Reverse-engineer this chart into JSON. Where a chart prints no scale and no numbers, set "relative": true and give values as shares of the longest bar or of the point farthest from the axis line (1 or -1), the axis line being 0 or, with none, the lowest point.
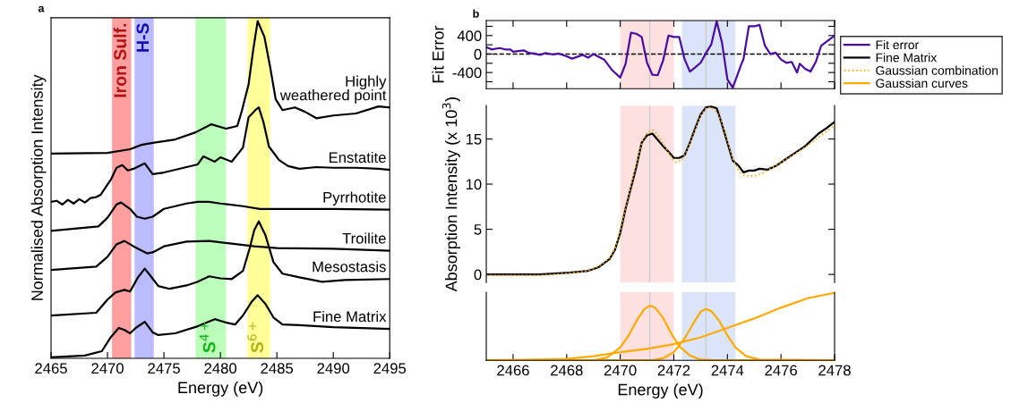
{
  "chart_data": [
    {
      "type": "line",
      "title": "a",
      "xlabel": "Energy (eV)",
      "ylabel": "Normalised Absorption Intensity",
      "relative": true,
      "legend": false,
      "marker": "none",
      "xlim": [
        2465,
        2495
      ],
      "xticks": [
        2465,
        2470,
        2475,
        2480,
        2485,
        2490,
        2495
      ],
      "bands": [
        {
          "axis": "x",
          "from": 2470.4,
          "to": 2472.1,
          "label": "Iron Sulf.",
          "color": "#ff9f9f"
        },
        {
          "axis": "x",
          "from": 2472.4,
          "to": 2474.1,
          "label": "H-S",
          "color": "#bbbbff"
        },
        {
          "axis": "x",
          "from": 2477.8,
          "to": 2480.5,
          "label": "S$^{4+}$",
          "color": "#bbffbb"
        },
        {
          "axis": "x",
          "from": 2482.4,
          "to": 2484.4,
          "label": "S$^{6+}$",
          "color": "#ffff99"
        }
      ],
      "series": [
        {
          "name": "Highly\nweathered point",
          "color": "#000000",
          "x": [
            2465,
            2470,
            2472,
            2473,
            2474,
            2476,
            2477.8,
            2479.2,
            2480.5,
            2481.5,
            2481.9,
            2482.5,
            2482.9,
            2483.3,
            2483.9,
            2484.4,
            2484.9,
            2485.5,
            2486.6,
            2487.5,
            2488.5,
            2490,
            2492,
            2494,
            2495
          ],
          "values": [
            0.607,
            0.609,
            0.62,
            0.633,
            0.639,
            0.649,
            0.67,
            0.694,
            0.681,
            0.689,
            0.734,
            0.813,
            0.913,
            1.0,
            0.953,
            0.865,
            0.768,
            0.736,
            0.744,
            0.731,
            0.712,
            0.72,
            0.726,
            0.747,
            0.744
          ]
        },
        {
          "name": "Enstatite",
          "color": "#000000",
          "x": [
            2465,
            2465.5,
            2466,
            2466.5,
            2467,
            2467.5,
            2468,
            2468.5,
            2469,
            2469.4,
            2470.3,
            2470.8,
            2471.3,
            2471.8,
            2472.3,
            2473.3,
            2474,
            2475,
            2476,
            2477,
            2478,
            2478.5,
            2479.5,
            2480,
            2481,
            2482,
            2482.5,
            2483.1,
            2483.4,
            2483.8,
            2484.3,
            2485.2,
            2486,
            2487,
            2488.5,
            2490,
            2492,
            2494,
            2495
          ],
          "values": [
            0.464,
            0.467,
            0.456,
            0.47,
            0.459,
            0.472,
            0.462,
            0.475,
            0.478,
            0.485,
            0.53,
            0.565,
            0.573,
            0.557,
            0.562,
            0.578,
            0.546,
            0.551,
            0.559,
            0.567,
            0.575,
            0.599,
            0.583,
            0.596,
            0.583,
            0.625,
            0.715,
            0.736,
            0.744,
            0.702,
            0.628,
            0.588,
            0.57,
            0.562,
            0.567,
            0.565,
            0.565,
            0.562,
            0.559
          ]
        },
        {
          "name": "Pyrrhotite",
          "color": "#000000",
          "x": [
            2465,
            2469.2,
            2470,
            2470.8,
            2471.2,
            2472,
            2472.6,
            2473.3,
            2474,
            2475,
            2477,
            2478,
            2479,
            2480,
            2482,
            2483.5,
            2485,
            2490,
            2495
          ],
          "values": [
            0.378,
            0.391,
            0.417,
            0.456,
            0.462,
            0.443,
            0.42,
            0.414,
            0.42,
            0.443,
            0.459,
            0.464,
            0.464,
            0.459,
            0.451,
            0.443,
            0.443,
            0.443,
            0.441
          ]
        },
        {
          "name": "Troilite",
          "color": "#000000",
          "x": [
            2465,
            2469,
            2470,
            2470.8,
            2471.5,
            2472.3,
            2473.5,
            2474,
            2475,
            2477,
            2479,
            2481,
            2483,
            2485,
            2490,
            2495
          ],
          "values": [
            0.262,
            0.272,
            0.301,
            0.338,
            0.348,
            0.332,
            0.311,
            0.314,
            0.332,
            0.346,
            0.348,
            0.34,
            0.332,
            0.327,
            0.325,
            0.319
          ]
        },
        {
          "name": "Mesostasis",
          "color": "#000000",
          "x": [
            2465,
            2469,
            2470,
            2470.7,
            2471.5,
            2472,
            2472.7,
            2473.3,
            2473.8,
            2474.5,
            2475.5,
            2477,
            2478,
            2479,
            2480,
            2481,
            2482,
            2482.6,
            2483,
            2483.4,
            2484,
            2484.7,
            2485.5,
            2487,
            2489,
            2491,
            2495
          ],
          "values": [
            0.127,
            0.135,
            0.174,
            0.195,
            0.203,
            0.198,
            0.24,
            0.266,
            0.245,
            0.214,
            0.206,
            0.216,
            0.227,
            0.243,
            0.237,
            0.235,
            0.259,
            0.327,
            0.38,
            0.406,
            0.364,
            0.285,
            0.251,
            0.24,
            0.227,
            0.232,
            0.235
          ]
        },
        {
          "name": "Fine Matrix",
          "color": "#000000",
          "x": [
            2465,
            2468,
            2469.5,
            2470.3,
            2471,
            2471.5,
            2472,
            2472.5,
            2473.3,
            2474,
            2474.5,
            2476,
            2478,
            2479.5,
            2480.5,
            2481.3,
            2482,
            2482.8,
            2483.3,
            2484,
            2484.7,
            2485.5,
            2487,
            2490,
            2495
          ],
          "values": [
            0.003,
            0.008,
            0.021,
            0.063,
            0.09,
            0.084,
            0.074,
            0.09,
            0.108,
            0.077,
            0.069,
            0.074,
            0.095,
            0.116,
            0.106,
            0.1,
            0.127,
            0.169,
            0.187,
            0.161,
            0.121,
            0.1,
            0.098,
            0.092,
            0.087
          ]
        }
      ]
    },
    {
      "type": "line",
      "title": "b",
      "ylabel": "Fit Error",
      "marker": "none",
      "tick_labels": "y",
      "xlim": [
        2465,
        2478
      ],
      "xticks": [
        2466,
        2468,
        2470,
        2472,
        2474,
        2476,
        2478
      ],
      "ylim": [
        -750,
        725
      ],
      "yticks": [
        {
          "value": -600,
          "label": null
        },
        -400,
        {
          "value": -200,
          "label": null
        },
        0,
        {
          "value": 200,
          "label": null
        },
        400,
        {
          "value": 600,
          "label": null
        }
      ],
      "bands": [
        {
          "axis": "x",
          "from": 2470.0,
          "to": 2472.0,
          "color": "#fde0e0"
        },
        {
          "axis": "x",
          "from": 2472.3,
          "to": 2474.3,
          "color": "#dce4fa"
        }
      ],
      "ref_lines": [
        {
          "axis": "x",
          "value": 2471.1,
          "color": "#cccccc"
        },
        {
          "axis": "x",
          "value": 2473.2,
          "color": "#cccccc"
        },
        {
          "axis": "y",
          "value": 0,
          "color": "#000000",
          "line_style": "dashed"
        }
      ],
      "series": [
        {
          "name": "Fit error",
          "color": "#4b0ca0",
          "x": [
            2465.0,
            2465.2,
            2465.5,
            2465.7,
            2465.9,
            2466.0,
            2466.4,
            2466.6,
            2466.8,
            2467.0,
            2467.2,
            2467.5,
            2467.7,
            2468.0,
            2468.2,
            2468.6,
            2468.8,
            2469.0,
            2469.4,
            2469.7,
            2470.0,
            2470.2,
            2470.4,
            2470.6,
            2470.8,
            2471.0,
            2471.2,
            2471.4,
            2471.6,
            2471.8,
            2472.0,
            2472.2,
            2472.4,
            2472.6,
            2472.8,
            2473.0,
            2473.2,
            2473.4,
            2473.6,
            2473.8,
            2474.0,
            2474.2,
            2474.5,
            2474.6,
            2474.8,
            2475.0,
            2475.2,
            2475.4,
            2475.6,
            2475.8,
            2476.0,
            2476.2,
            2476.4,
            2476.6,
            2476.7,
            2476.9,
            2477.1,
            2477.3,
            2477.5,
            2478.0
          ],
          "values": [
            150,
            100,
            130,
            100,
            100,
            50,
            80,
            20,
            10,
            -20,
            20,
            -10,
            10,
            -50,
            -100,
            -20,
            -80,
            0,
            -120,
            -350,
            -510,
            -210,
            460,
            440,
            370,
            -190,
            -450,
            -460,
            -140,
            400,
            370,
            370,
            -110,
            -380,
            -290,
            -190,
            20,
            210,
            710,
            240,
            -550,
            -730,
            -250,
            -110,
            600,
            600,
            630,
            180,
            0,
            30,
            -120,
            -190,
            -170,
            -400,
            -210,
            -320,
            -380,
            -170,
            180,
            400
          ]
        }
      ]
    },
    {
      "type": "line",
      "ylabel": "Absorption Intensity (x 10$^{3}$)",
      "legend": "right",
      "marker": "none",
      "tick_labels": "y",
      "xlim": [
        2465,
        2478
      ],
      "xticks": [
        2466,
        2468,
        2470,
        2472,
        2474,
        2476,
        2478
      ],
      "ylim": [
        -0.9,
        18.7
      ],
      "yticks": [
        0,
        5,
        10,
        15
      ],
      "bands": [
        {
          "axis": "x",
          "from": 2470.0,
          "to": 2472.0,
          "color": "#fde0e0"
        },
        {
          "axis": "x",
          "from": 2472.3,
          "to": 2474.3,
          "color": "#dce4fa"
        }
      ],
      "ref_lines": [
        {
          "axis": "x",
          "value": 2471.1,
          "color": "#cccccc"
        },
        {
          "axis": "x",
          "value": 2473.2,
          "color": "#cccccc"
        }
      ],
      "series": [
        {
          "name": "Fine Matrix",
          "color": "#000000",
          "line_style": "solid",
          "x": [
            2465.0,
            2467.0,
            2468.1,
            2468.8,
            2469.2,
            2469.6,
            2469.8,
            2470.0,
            2470.2,
            2470.4,
            2470.6,
            2470.8,
            2471.0,
            2471.2,
            2471.4,
            2471.6,
            2471.8,
            2472.0,
            2472.2,
            2472.4,
            2472.6,
            2472.8,
            2473.0,
            2473.2,
            2473.4,
            2473.6,
            2473.8,
            2474.0,
            2474.2,
            2474.4,
            2474.6,
            2474.8,
            2475.0,
            2475.2,
            2475.5,
            2475.8,
            2476.1,
            2476.5,
            2476.9,
            2477.4,
            2477.7,
            2478.0
          ],
          "values": [
            0,
            0,
            0.2,
            0.4,
            0.8,
            1.7,
            2.7,
            4.6,
            7.3,
            9.6,
            11.9,
            14.6,
            15.4,
            15.6,
            14.9,
            14.2,
            13.6,
            12.9,
            12.9,
            13.2,
            14.6,
            16.2,
            17.7,
            18.5,
            18.6,
            18.4,
            16.6,
            14.6,
            12.6,
            12.1,
            11.3,
            11.5,
            11.5,
            11.7,
            11.6,
            12.0,
            12.6,
            13.4,
            14.2,
            15.6,
            16.2,
            16.9
          ]
        },
        {
          "name": "Gaussian combination",
          "color": "#ffaa00",
          "line_style": "dotted",
          "x": [
            2465,
            2467,
            2468,
            2468.8,
            2469.2,
            2469.6,
            2469.8,
            2470.0,
            2470.2,
            2470.4,
            2470.6,
            2470.8,
            2471.0,
            2471.2,
            2471.4,
            2471.6,
            2471.8,
            2472.0,
            2472.1,
            2472.3,
            2472.5,
            2472.8,
            2473.0,
            2473.2,
            2473.4,
            2473.6,
            2473.8,
            2474.0,
            2474.2,
            2474.4,
            2474.6,
            2474.8,
            2475.0,
            2475.3,
            2475.6,
            2476.0,
            2476.5,
            2477.0,
            2477.5,
            2478.0
          ],
          "values": [
            -0.1,
            -0.1,
            0.1,
            0.4,
            0.9,
            1.8,
            2.8,
            4.8,
            7.4,
            9.8,
            12.2,
            14.6,
            15.7,
            16.0,
            15.5,
            14.5,
            13.5,
            12.6,
            12.4,
            12.7,
            13.8,
            16.0,
            17.6,
            18.4,
            18.5,
            18.0,
            16.8,
            14.8,
            12.8,
            11.6,
            11.0,
            10.9,
            10.9,
            11.2,
            11.7,
            12.4,
            13.3,
            14.3,
            15.4,
            16.5
          ]
        }
      ]
    },
    {
      "type": "line",
      "xlabel": "Energy (eV)",
      "relative": true,
      "marker": "none",
      "tick_labels": "x",
      "xlim": [
        2465,
        2478
      ],
      "xticks": [
        2466,
        2468,
        2470,
        2472,
        2474,
        2476,
        2478
      ],
      "bands": [
        {
          "axis": "x",
          "from": 2470.0,
          "to": 2472.0,
          "color": "#fde0e0"
        },
        {
          "axis": "x",
          "from": 2472.3,
          "to": 2474.3,
          "color": "#dce4fa"
        }
      ],
      "ref_lines": [
        {
          "axis": "x",
          "value": 2471.1,
          "color": "#cccccc"
        },
        {
          "axis": "x",
          "value": 2473.2,
          "color": "#cccccc"
        }
      ],
      "series": [
        {
          "name": "Gaussian curves",
          "color": "#ffaa00",
          "x": [
            2465,
            2469.0,
            2469.5,
            2470.0,
            2470.3,
            2470.6,
            2470.9,
            2471.1,
            2471.3,
            2471.6,
            2471.9,
            2472.2,
            2472.6,
            2473.0,
            2473.5,
            2478
          ],
          "values": [
            0,
            0,
            0.04,
            0.19,
            0.36,
            0.58,
            0.76,
            0.81,
            0.78,
            0.63,
            0.4,
            0.21,
            0.07,
            0.01,
            0,
            0
          ]
        },
        {
          "color": "#ffaa00",
          "x": [
            2465,
            2471.2,
            2471.6,
            2472.0,
            2472.4,
            2472.7,
            2473.0,
            2473.2,
            2473.4,
            2473.7,
            2474.0,
            2474.3,
            2474.7,
            2475.2,
            2478
          ],
          "values": [
            0,
            0,
            0.03,
            0.12,
            0.32,
            0.53,
            0.72,
            0.76,
            0.73,
            0.58,
            0.37,
            0.19,
            0.06,
            0.01,
            0
          ]
        },
        {
          "color": "#ffaa00",
          "x": [
            2465,
            2467,
            2468,
            2469,
            2470,
            2471,
            2472,
            2473,
            2474,
            2475,
            2476,
            2477,
            2478
          ],
          "values": [
            0,
            0.01,
            0.02,
            0.06,
            0.12,
            0.17,
            0.24,
            0.34,
            0.48,
            0.62,
            0.78,
            0.92,
            1.0
          ]
        }
      ]
    }
  ]
}
